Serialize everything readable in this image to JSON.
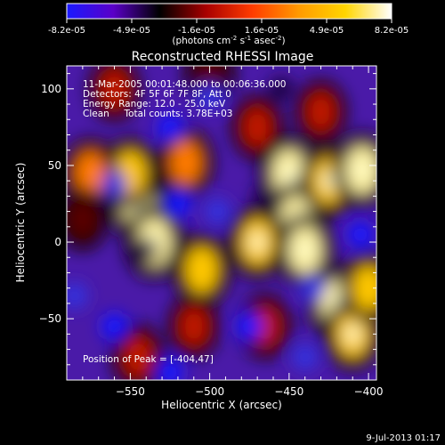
{
  "chart_data": {
    "type": "heatmap",
    "title": "Reconstructed RHESSI Image",
    "xlabel": "Heliocentric X (arcsec)",
    "ylabel": "Heliocentric Y (arcsec)",
    "xlim": [
      -590,
      -395
    ],
    "ylim": [
      -90,
      115
    ],
    "x_ticks": [
      -550,
      -500,
      -450,
      -400
    ],
    "y_ticks": [
      -50,
      0,
      50,
      100
    ],
    "colorbar": {
      "ticks": [
        "-8.2e-05",
        "-4.9e-05",
        "-1.6e-05",
        "1.6e-05",
        "4.9e-05",
        "8.2e-05"
      ],
      "unit_main": "(photons cm",
      "unit_exp1": "-2",
      "unit_mid": " s",
      "unit_exp2": "-1",
      "unit_end": " asec",
      "unit_exp3": "-2",
      "unit_close": ")",
      "colors": [
        "#1a1aff",
        "#5a00c8",
        "#000000",
        "#a80000",
        "#ff3c00",
        "#ff9a00",
        "#ffd500",
        "#ffffff"
      ]
    },
    "annotations": [
      "11-Mar-2005 00:01:48.000 to 00:06:36.000",
      "Detectors: 4F 5F 6F 7F 8F, Att 0",
      "Energy Range: 12.0 - 25.0 keV",
      "Clean     Total counts: 3.78E+03"
    ],
    "peak_label": "Position of Peak = [-404,47]",
    "sources": [
      {
        "x": -545,
        "y": 25,
        "value": 1.0
      },
      {
        "x": -535,
        "y": 0,
        "value": 1.0
      },
      {
        "x": -550,
        "y": 45,
        "value": 0.8
      },
      {
        "x": -575,
        "y": 45,
        "value": 0.75
      },
      {
        "x": -515,
        "y": 52,
        "value": 0.75
      },
      {
        "x": -505,
        "y": -18,
        "value": 0.85
      },
      {
        "x": -450,
        "y": 45,
        "value": 1.0
      },
      {
        "x": -445,
        "y": 15,
        "value": 1.0
      },
      {
        "x": -440,
        "y": -5,
        "value": 0.95
      },
      {
        "x": -470,
        "y": 0,
        "value": 0.9
      },
      {
        "x": -425,
        "y": 40,
        "value": 0.9
      },
      {
        "x": -404,
        "y": 47,
        "value": 1.0
      },
      {
        "x": -420,
        "y": -40,
        "value": 0.95
      },
      {
        "x": -410,
        "y": -60,
        "value": 0.9
      },
      {
        "x": -400,
        "y": -30,
        "value": 0.8
      },
      {
        "x": -465,
        "y": -55,
        "value": 0.55
      },
      {
        "x": -545,
        "y": -75,
        "value": 0.6
      },
      {
        "x": -560,
        "y": 100,
        "value": 0.5
      },
      {
        "x": -470,
        "y": 75,
        "value": 0.55
      },
      {
        "x": -500,
        "y": 110,
        "value": 0.45
      },
      {
        "x": -430,
        "y": 85,
        "value": 0.5
      },
      {
        "x": -580,
        "y": 15,
        "value": 0.45
      },
      {
        "x": -510,
        "y": -55,
        "value": 0.5
      },
      {
        "x": -560,
        "y": 38,
        "value": -0.6
      },
      {
        "x": -525,
        "y": 75,
        "value": -0.7
      },
      {
        "x": -520,
        "y": 25,
        "value": -0.7
      },
      {
        "x": -495,
        "y": 20,
        "value": -0.6
      },
      {
        "x": -465,
        "y": 30,
        "value": -0.5
      },
      {
        "x": -475,
        "y": -55,
        "value": -0.7
      },
      {
        "x": -435,
        "y": -30,
        "value": -0.6
      },
      {
        "x": -405,
        "y": 5,
        "value": -0.7
      },
      {
        "x": -585,
        "y": -35,
        "value": -0.6
      },
      {
        "x": -560,
        "y": -55,
        "value": -0.7
      },
      {
        "x": -525,
        "y": -85,
        "value": -0.7
      },
      {
        "x": -540,
        "y": -5,
        "value": -0.4
      },
      {
        "x": -440,
        "y": -75,
        "value": -0.6
      },
      {
        "x": -500,
        "y": 95,
        "value": -0.6
      },
      {
        "x": -455,
        "y": 100,
        "value": -0.5
      }
    ]
  },
  "footer": {
    "timestamp": "9-Jul-2013 01:17"
  }
}
